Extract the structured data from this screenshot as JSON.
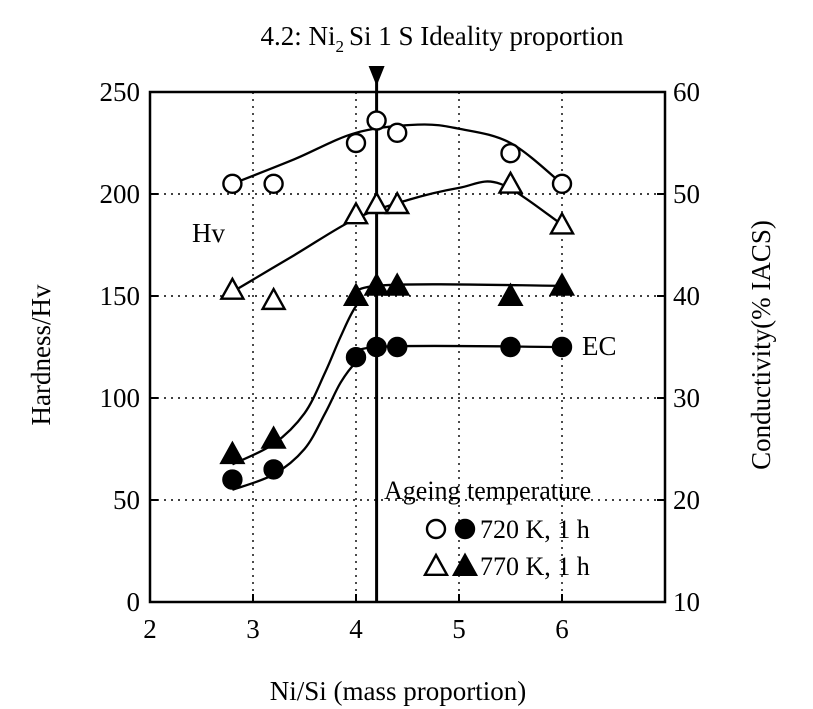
{
  "chart_data": {
    "type": "scatter",
    "title_prefix": "4.2: Ni",
    "title_sub": "2",
    "title_suffix": "Si 1 S Ideality proportion",
    "xlabel": "Ni/Si (mass proportion)",
    "ylabel_left": "Hardness/Hv",
    "ylabel_right": "Conductivity(% IACS)",
    "xlim": [
      2,
      7
    ],
    "ylim_left": [
      0,
      250
    ],
    "ylim_right": [
      10,
      60
    ],
    "x_ticks": [
      "2",
      "3",
      "4",
      "5",
      "6"
    ],
    "y_ticks_left": [
      "0",
      "50",
      "100",
      "150",
      "200",
      "250"
    ],
    "y_ticks_right": [
      "10",
      "20",
      "30",
      "40",
      "50",
      "60"
    ],
    "grid": true,
    "vertical_marker_x": 4.2,
    "annotations": {
      "hv": "Hv",
      "ec": "EC"
    },
    "legend": {
      "title": "Ageing temperature",
      "entries": [
        "720 K, 1 h",
        "770 K, 1 h"
      ]
    },
    "series": [
      {
        "name": "720 K, 1 h",
        "quantity": "Hardness",
        "axis": "left",
        "marker": "open-circle",
        "x": [
          2.8,
          3.2,
          4.0,
          4.2,
          4.4,
          5.5,
          6.0
        ],
        "y": [
          205,
          205,
          225,
          236,
          230,
          220,
          205
        ]
      },
      {
        "name": "770 K, 1 h",
        "quantity": "Hardness",
        "axis": "left",
        "marker": "open-triangle",
        "x": [
          2.8,
          3.2,
          4.0,
          4.2,
          4.4,
          5.5,
          6.0
        ],
        "y": [
          153,
          148,
          190,
          195,
          195,
          205,
          185
        ]
      },
      {
        "name": "720 K, 1 h",
        "quantity": "Conductivity",
        "axis": "right",
        "marker": "filled-circle",
        "x": [
          2.8,
          3.2,
          4.0,
          4.2,
          4.4,
          5.5,
          6.0
        ],
        "y": [
          22,
          23,
          34,
          35,
          35,
          35,
          35
        ]
      },
      {
        "name": "770 K, 1 h",
        "quantity": "Conductivity",
        "axis": "right",
        "marker": "filled-triangle",
        "x": [
          2.8,
          3.2,
          4.0,
          4.2,
          4.4,
          5.5,
          6.0
        ],
        "y": [
          24.5,
          26,
          40,
          41,
          41,
          40,
          41
        ]
      }
    ],
    "fit_curves": [
      {
        "axis": "left",
        "x": [
          2.8,
          3.4,
          4.0,
          4.6,
          5.0,
          5.5,
          6.0
        ],
        "y": [
          205,
          217,
          230,
          234,
          232,
          225,
          205
        ]
      },
      {
        "axis": "left",
        "x": [
          2.8,
          3.4,
          4.0,
          4.5,
          5.0,
          5.4,
          6.0
        ],
        "y": [
          152,
          170,
          188,
          197,
          203,
          205,
          185
        ]
      },
      {
        "axis": "right",
        "x": [
          2.8,
          3.2,
          3.5,
          3.7,
          3.85,
          4.0,
          4.2,
          6.0
        ],
        "y": [
          21,
          22.5,
          25,
          28.5,
          31.5,
          33.5,
          35,
          35
        ]
      },
      {
        "axis": "right",
        "x": [
          2.8,
          3.2,
          3.5,
          3.7,
          3.85,
          4.0,
          4.2,
          6.0
        ],
        "y": [
          23.5,
          25.5,
          28.5,
          32.5,
          36,
          39,
          41,
          41
        ]
      }
    ]
  }
}
